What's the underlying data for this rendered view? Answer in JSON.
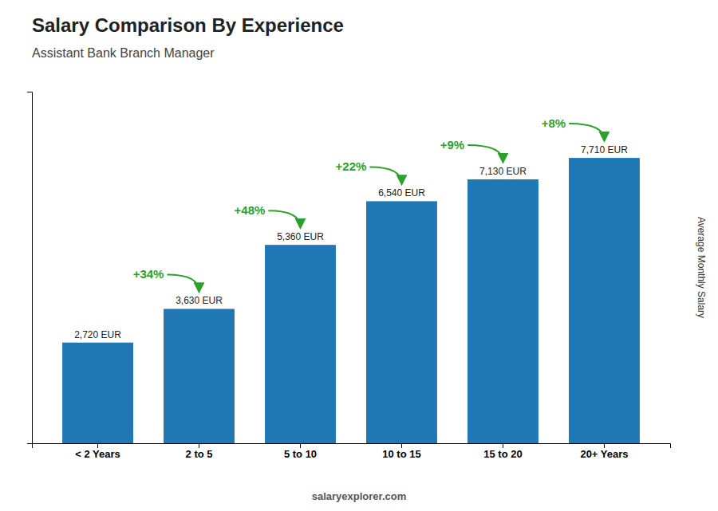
{
  "chart_data": {
    "type": "bar",
    "title": "Salary Comparison By Experience",
    "subtitle": "Assistant Bank Branch Manager",
    "ylabel": "Average Monthly Salary",
    "categories": [
      "< 2 Years",
      "2 to 5",
      "5 to 10",
      "10 to 15",
      "15 to 20",
      "20+ Years"
    ],
    "values": [
      2720,
      3630,
      5360,
      6540,
      7130,
      7710
    ],
    "value_labels": [
      "2,720 EUR",
      "3,630 EUR",
      "5,360 EUR",
      "6,540 EUR",
      "7,130 EUR",
      "7,710 EUR"
    ],
    "data_labels": true,
    "annotations": [
      "+34%",
      "+48%",
      "+22%",
      "+9%",
      "+8%"
    ],
    "source": "salaryexplorer.com",
    "ylim": [
      0,
      9500
    ],
    "tick_labels": "x",
    "grid": false
  }
}
